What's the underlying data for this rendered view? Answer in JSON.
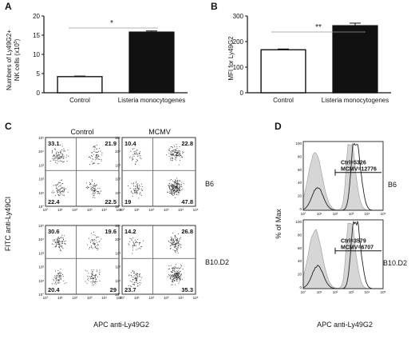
{
  "panels": {
    "A": {
      "letter": "A",
      "ylabel_line1": "Numbers of Ly49G2+",
      "ylabel_line2": "NK cells (x10",
      "ylabel_exp": "5",
      "ylabel_close": ")",
      "significance": "*"
    },
    "B": {
      "letter": "B",
      "ylabel": "MFI for Ly49G2",
      "significance": "**"
    },
    "C": {
      "letter": "C",
      "col_headers": [
        "Control",
        "MCMV"
      ],
      "row_labels": [
        "B6",
        "B10.D2"
      ],
      "ylabel": "FITC anti-Ly49CI",
      "xlabel": "APC anti-Ly49G2",
      "tick_labels": [
        "10°",
        "10¹",
        "10²",
        "10³",
        "10⁴",
        "10⁵"
      ],
      "quadrants": [
        {
          "tl": "33.1",
          "tr": "21.9",
          "bl": "22.4",
          "br": "22.5"
        },
        {
          "tl": "10.4",
          "tr": "22.8",
          "bl": "19",
          "br": "47.8"
        },
        {
          "tl": "30.6",
          "tr": "19.6",
          "bl": "20.4",
          "br": "29"
        },
        {
          "tl": "14.2",
          "tr": "26.8",
          "bl": "23.7",
          "br": "35.3"
        }
      ]
    },
    "D": {
      "letter": "D",
      "ylabel": "% of Max",
      "xlabel": "APC anti-Ly49G2",
      "row_labels": [
        "B6",
        "B10.D2"
      ],
      "y_ticks": [
        "100",
        "80",
        "60",
        "40",
        "20",
        "0"
      ],
      "x_ticks": [
        "10°",
        "10¹",
        "10²",
        "10³",
        "10⁴",
        "10⁵"
      ],
      "annotations": [
        {
          "ctrl": "Ctrl=5326",
          "mcmv": "MCMV=12776"
        },
        {
          "ctrl": "Ctrl=3579",
          "mcmv": "MCMV=6707"
        }
      ]
    }
  },
  "chart_data": [
    {
      "type": "bar",
      "panel": "A",
      "categories": [
        "Control",
        "Listeria monocytogenes"
      ],
      "values": [
        4.2,
        15.8
      ],
      "errors": [
        0.15,
        0.3
      ],
      "fill": [
        "#ffffff",
        "#111111"
      ],
      "yticks": [
        0,
        5,
        10,
        15,
        20
      ],
      "ylim": [
        0,
        20
      ]
    },
    {
      "type": "bar",
      "panel": "B",
      "categories": [
        "Control",
        "Listeria monocytogenes"
      ],
      "values": [
        168,
        262
      ],
      "errors": [
        3,
        10
      ],
      "fill": [
        "#ffffff",
        "#111111"
      ],
      "yticks": [
        0,
        100,
        200,
        300
      ],
      "ylim": [
        0,
        300
      ]
    }
  ]
}
